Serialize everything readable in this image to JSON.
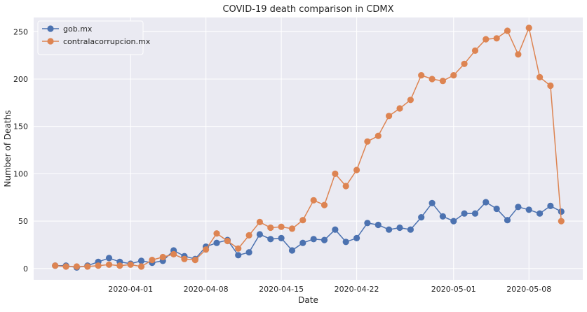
{
  "chart_data": {
    "type": "line",
    "title": "COVID-19 death comparison in CDMX",
    "xlabel": "Date",
    "ylabel": "Number of Deaths",
    "x_start": "2020-03-25",
    "x_end": "2020-05-12",
    "xlim": [
      "2020-03-23",
      "2020-05-13"
    ],
    "ylim": [
      -12,
      265
    ],
    "x_ticks": [
      "2020-04-01",
      "2020-04-08",
      "2020-04-15",
      "2020-04-22",
      "2020-05-01",
      "2020-05-08"
    ],
    "y_ticks": [
      0,
      50,
      100,
      150,
      200,
      250
    ],
    "grid": true,
    "legend_position": "top-left",
    "series": [
      {
        "name": "gob.mx",
        "color": "#4c72b0",
        "values": [
          3,
          3,
          1,
          3,
          7,
          11,
          7,
          5,
          8,
          6,
          8,
          19,
          13,
          10,
          23,
          27,
          30,
          14,
          17,
          36,
          31,
          32,
          19,
          27,
          31,
          30,
          41,
          28,
          32,
          48,
          46,
          41,
          43,
          41,
          54,
          69,
          55,
          50,
          58,
          58,
          70,
          63,
          51,
          65,
          62,
          58,
          66,
          60
        ]
      },
      {
        "name": "contralacorrupcion.mx",
        "color": "#dd8452",
        "values": [
          3,
          2,
          2,
          2,
          3,
          4,
          3,
          4,
          2,
          9,
          12,
          15,
          10,
          9,
          20,
          37,
          29,
          21,
          35,
          49,
          43,
          44,
          42,
          51,
          72,
          67,
          100,
          87,
          104,
          134,
          140,
          161,
          169,
          178,
          204,
          200,
          198,
          204,
          216,
          230,
          242,
          243,
          251,
          226,
          254,
          202,
          193,
          50
        ]
      }
    ]
  }
}
